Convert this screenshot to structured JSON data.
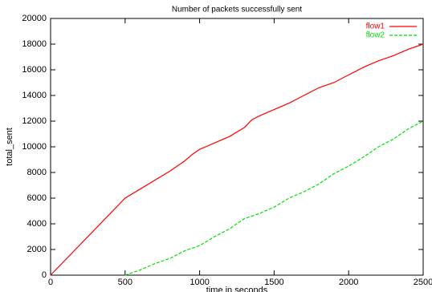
{
  "chart_data": {
    "type": "line",
    "title": "Number of packets successfully sent",
    "x_label": "time in seconds",
    "y_label": "total_sent",
    "xlim": [
      0,
      2500
    ],
    "xticks": [
      0,
      500,
      1000,
      1500,
      2000,
      2500
    ],
    "ylim": [
      0,
      20000
    ],
    "yticks": [
      0,
      2000,
      4000,
      6000,
      8000,
      10000,
      12000,
      14000,
      16000,
      18000,
      20000
    ],
    "legend": "top-right",
    "series": [
      {
        "name": "flow1",
        "color": "#ff0000",
        "line_style": "solid",
        "x": [
          0,
          500,
          600,
          800,
          900,
          950,
          1000,
          1100,
          1200,
          1300,
          1350,
          1400,
          1500,
          1600,
          1700,
          1800,
          1900,
          2000,
          2100,
          2200,
          2300,
          2400,
          2500
        ],
        "values": [
          0,
          6000,
          6700,
          8100,
          8900,
          9400,
          9800,
          10300,
          10800,
          11500,
          12100,
          12400,
          12900,
          13400,
          14000,
          14600,
          15000,
          15600,
          16200,
          16700,
          17100,
          17600,
          18000
        ]
      },
      {
        "name": "flow2",
        "color": "#00e000",
        "line_style": "dashed",
        "x": [
          500,
          600,
          700,
          800,
          900,
          1000,
          1100,
          1200,
          1300,
          1400,
          1500,
          1600,
          1700,
          1800,
          1900,
          2000,
          2100,
          2200,
          2300,
          2400,
          2500
        ],
        "values": [
          0,
          400,
          900,
          1300,
          1900,
          2300,
          3000,
          3600,
          4400,
          4800,
          5300,
          6000,
          6500,
          7100,
          7900,
          8500,
          9200,
          10000,
          10600,
          11400,
          12000
        ]
      }
    ]
  }
}
